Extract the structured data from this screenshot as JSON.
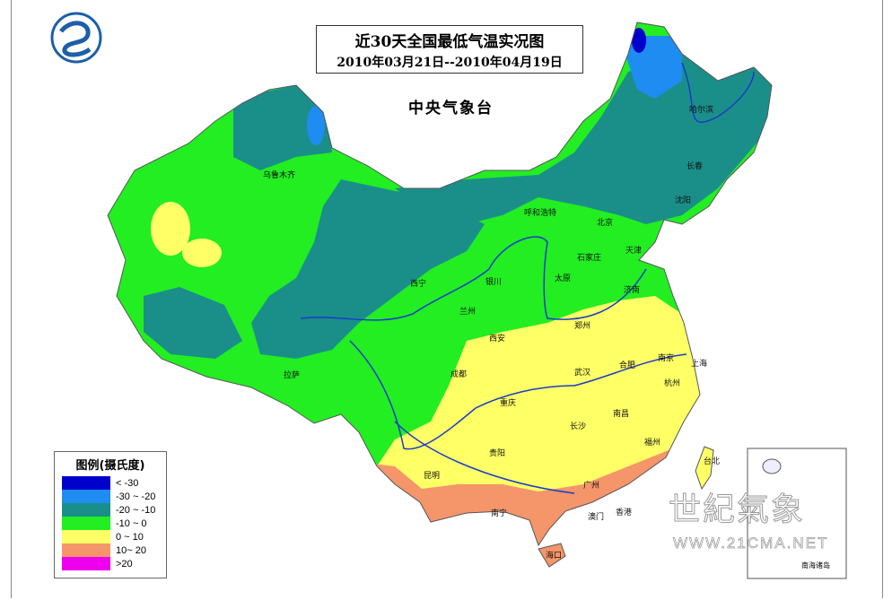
{
  "title": "近30天全国最低气温实况图",
  "subtitle": "2010年03月21日--2010年04月19日",
  "agency": "中央气象台",
  "legend": {
    "title": "图例(摄氏度)",
    "items": [
      {
        "label": "< -30",
        "color": "#0000cc"
      },
      {
        "label": "-30 ~ -20",
        "color": "#1e8cf0"
      },
      {
        "label": "-20 ~ -10",
        "color": "#1a8f8a"
      },
      {
        "label": "-10 ~ 0",
        "color": "#22ee22"
      },
      {
        "label": "0 ~ 10",
        "color": "#ffff66"
      },
      {
        "label": "10~ 20",
        "color": "#f4956a"
      },
      {
        "label": ">20",
        "color": "#ee00ee"
      }
    ]
  },
  "cities": {
    "harbin": "哈尔滨",
    "changchun": "长春",
    "shenyang": "沈阳",
    "urumqi": "乌鲁木齐",
    "hohhot": "呼和浩特",
    "beijing": "北京",
    "tianjin": "天津",
    "shijiazhuang": "石家庄",
    "taiyuan": "太原",
    "jinan": "济南",
    "xining": "西宁",
    "yinchuan": "银川",
    "lanzhou": "兰州",
    "zhengzhou": "郑州",
    "xian": "西安",
    "nanjing": "南京",
    "shanghai": "上海",
    "hefei": "合肥",
    "wuhan": "武汉",
    "hangzhou": "杭州",
    "chengdu": "成都",
    "chongqing": "重庆",
    "lhasa": "拉萨",
    "changsha": "长沙",
    "nanchang": "南昌",
    "fuzhou": "福州",
    "guiyang": "贵阳",
    "kunming": "昆明",
    "guangzhou": "广州",
    "nanning": "南宁",
    "macau": "澳门",
    "hongkong": "香港",
    "haikou": "海口",
    "taipei": "台北"
  },
  "inset_label": "南海诸岛",
  "watermark": {
    "text": "世紀氣象",
    "url": "WWW.21CMA.NET"
  },
  "river_color": "#1a3cc8"
}
